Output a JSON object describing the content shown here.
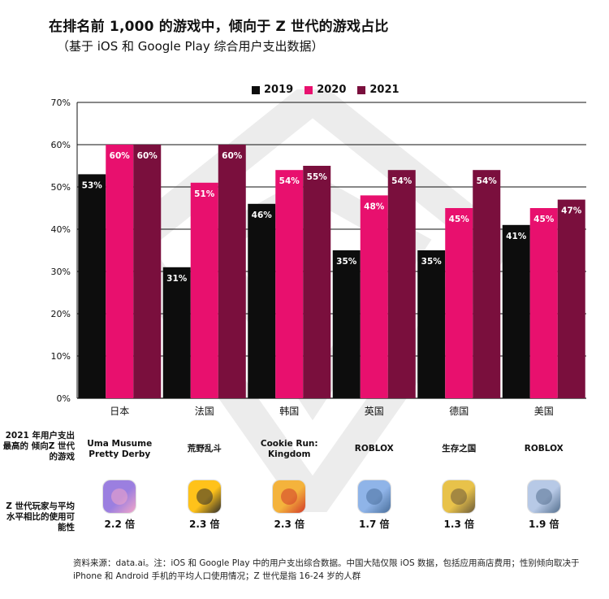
{
  "title": "在排名前 1,000 的游戏中，倾向于 Z 世代的游戏占比",
  "subtitle": "（基于 iOS 和 Google Play 综合用户支出数据）",
  "colors": {
    "y2019": "#0d0d0d",
    "y2020": "#e8106e",
    "y2021": "#7a0f3d"
  },
  "chart_data": {
    "type": "bar",
    "categories": [
      "日本",
      "法国",
      "韩国",
      "英国",
      "德国",
      "美国"
    ],
    "series": [
      {
        "name": "2019",
        "values": [
          53,
          31,
          46,
          35,
          35,
          41
        ],
        "labels": [
          "53%",
          "31%",
          "46%",
          "35%",
          "35%",
          "41%"
        ]
      },
      {
        "name": "2020",
        "values": [
          60,
          51,
          54,
          48,
          45,
          45
        ],
        "labels": [
          "60%",
          "51%",
          "54%",
          "48%",
          "45%",
          "45%"
        ]
      },
      {
        "name": "2021",
        "values": [
          60,
          60,
          55,
          54,
          54,
          47
        ],
        "labels": [
          "60%",
          "60%",
          "55%",
          "54%",
          "54%",
          "47%"
        ]
      }
    ],
    "ylim": [
      0,
      70
    ],
    "yticks": [
      "0%",
      "10%",
      "20%",
      "30%",
      "40%",
      "50%",
      "60%",
      "70%"
    ],
    "grid": true,
    "legend_position": "top-center"
  },
  "row_labels": {
    "top_game": "2021 年用户支出最高的 倾向Z 世代的游戏",
    "likelihood": "Z 世代玩家与平均水平相比的使用可能性"
  },
  "games": [
    {
      "name": "Uma Musume Pretty Derby",
      "multiplier": "2.2 倍",
      "icon": "uma-musume-icon",
      "icon_colors": [
        "#9b7fe0",
        "#f3a6c8"
      ]
    },
    {
      "name": "荒野乱斗",
      "multiplier": "2.3 倍",
      "icon": "brawl-stars-icon",
      "icon_colors": [
        "#ffc21a",
        "#2b2b2b"
      ]
    },
    {
      "name": "Cookie Run: Kingdom",
      "multiplier": "2.3 倍",
      "icon": "cookie-run-icon",
      "icon_colors": [
        "#f4b33c",
        "#d23a2a"
      ]
    },
    {
      "name": "ROBLOX",
      "multiplier": "1.7 倍",
      "icon": "roblox-icon",
      "icon_colors": [
        "#8fb4e8",
        "#4a6f9c"
      ]
    },
    {
      "name": "生存之国",
      "multiplier": "1.3 倍",
      "icon": "survival-game-icon",
      "icon_colors": [
        "#e8c24a",
        "#6b5a3a"
      ]
    },
    {
      "name": "ROBLOX",
      "multiplier": "1.9 倍",
      "icon": "roblox-icon",
      "icon_colors": [
        "#b7c9e6",
        "#55708f"
      ]
    }
  ],
  "footnote": "资料来源：data.ai。注：iOS 和 Google Play 中的用户支出综合数据。中国大陆仅限 iOS 数据，包括应用商店费用；性别倾向取决于 iPhone 和 Android 手机的平均人口使用情况；Z 世代是指 16-24 岁的人群"
}
